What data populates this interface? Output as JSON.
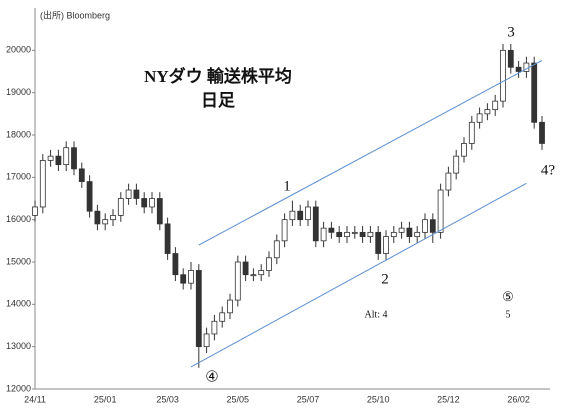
{
  "chart_data": {
    "type": "candlestick",
    "title": "NYダウ 輸送株平均",
    "subtitle": "日足",
    "source": "(出所) Bloomberg",
    "categories": [
      "24/11",
      null,
      null,
      null,
      null,
      null,
      null,
      null,
      null,
      "25/01",
      null,
      null,
      null,
      null,
      null,
      null,
      null,
      "25/03",
      null,
      null,
      null,
      null,
      null,
      null,
      null,
      null,
      "25/05",
      null,
      null,
      null,
      null,
      null,
      null,
      null,
      null,
      "25/07",
      null,
      null,
      null,
      null,
      null,
      null,
      null,
      null,
      "25/10",
      null,
      null,
      null,
      null,
      null,
      null,
      null,
      null,
      "25/12",
      null,
      null,
      null,
      null,
      null,
      null,
      null,
      null,
      "26/02",
      null,
      null,
      null
    ],
    "open": [
      16100,
      16300,
      17400,
      17500,
      17300,
      17700,
      17200,
      16900,
      16200,
      15900,
      16000,
      16100,
      16500,
      16700,
      16500,
      16300,
      16500,
      15900,
      15200,
      14700,
      14500,
      14800,
      13000,
      13300,
      13600,
      13800,
      14100,
      15000,
      14700,
      14700,
      14800,
      15100,
      15500,
      16000,
      16200,
      16000,
      16300,
      15500,
      15800,
      15700,
      15600,
      15700,
      15700,
      15600,
      15700,
      15200,
      15600,
      15700,
      15800,
      15600,
      15700,
      16000,
      15700,
      16700,
      17100,
      17500,
      17800,
      18300,
      18500,
      18600,
      18800,
      20000,
      19600,
      19500,
      19700,
      18300
    ],
    "high": [
      16450,
      17550,
      17650,
      17650,
      17850,
      17850,
      17350,
      17050,
      16350,
      16150,
      16250,
      16650,
      16850,
      16850,
      16650,
      16650,
      16650,
      16050,
      15350,
      14850,
      15000,
      14950,
      13450,
      13750,
      13950,
      14250,
      15150,
      15150,
      14850,
      14950,
      15250,
      15650,
      16150,
      16450,
      16350,
      16450,
      16450,
      15950,
      15950,
      15850,
      15850,
      15850,
      15850,
      15850,
      15850,
      15750,
      15850,
      15950,
      15950,
      15850,
      16150,
      16150,
      16850,
      17250,
      17650,
      17950,
      18450,
      18650,
      18750,
      18950,
      20150,
      20150,
      19750,
      19850,
      19850,
      18450
    ],
    "low": [
      15950,
      16150,
      17250,
      17150,
      17150,
      17050,
      16750,
      16050,
      15750,
      15750,
      15850,
      15950,
      16350,
      16350,
      16150,
      16150,
      15750,
      15050,
      14550,
      14350,
      14350,
      12500,
      12850,
      13150,
      13450,
      13650,
      13950,
      14550,
      14550,
      14550,
      14650,
      14950,
      15350,
      15850,
      15850,
      15850,
      15350,
      15350,
      15550,
      15450,
      15450,
      15550,
      15450,
      15450,
      15050,
      15050,
      15450,
      15550,
      15450,
      15450,
      15550,
      15450,
      15550,
      16550,
      16950,
      17350,
      17650,
      18150,
      18350,
      18450,
      18650,
      19450,
      19350,
      19350,
      18150,
      17650
    ],
    "close": [
      16300,
      17400,
      17500,
      17300,
      17700,
      17200,
      16900,
      16200,
      15900,
      16000,
      16100,
      16500,
      16700,
      16500,
      16300,
      16500,
      15900,
      15200,
      14700,
      14500,
      14800,
      13000,
      13300,
      13600,
      13800,
      14100,
      15000,
      14700,
      14700,
      14800,
      15100,
      15500,
      16000,
      16200,
      16000,
      16300,
      15500,
      15800,
      15700,
      15600,
      15700,
      15700,
      15600,
      15700,
      15200,
      15600,
      15700,
      15800,
      15600,
      15700,
      16000,
      15700,
      16700,
      17100,
      17500,
      17800,
      18300,
      18500,
      18600,
      18800,
      20000,
      19600,
      19500,
      19700,
      18300,
      17800
    ],
    "up_color": "#ffffff",
    "down_color": "#333333",
    "ylim": [
      12000,
      21000
    ],
    "yticks": [
      12000,
      13000,
      14000,
      15000,
      16000,
      17000,
      18000,
      19000,
      20000
    ],
    "grid": false,
    "trendlines": [
      {
        "color": "#5b8fd0",
        "x": [
          21,
          65
        ],
        "y": [
          15400,
          19760
        ]
      },
      {
        "color": "#5b8fd0",
        "x": [
          20,
          63
        ],
        "y": [
          12520,
          16860
        ]
      }
    ],
    "annotations": [
      "1",
      "2",
      "3",
      "4?",
      "④",
      "⑤",
      "Alt: 4",
      "5"
    ]
  }
}
